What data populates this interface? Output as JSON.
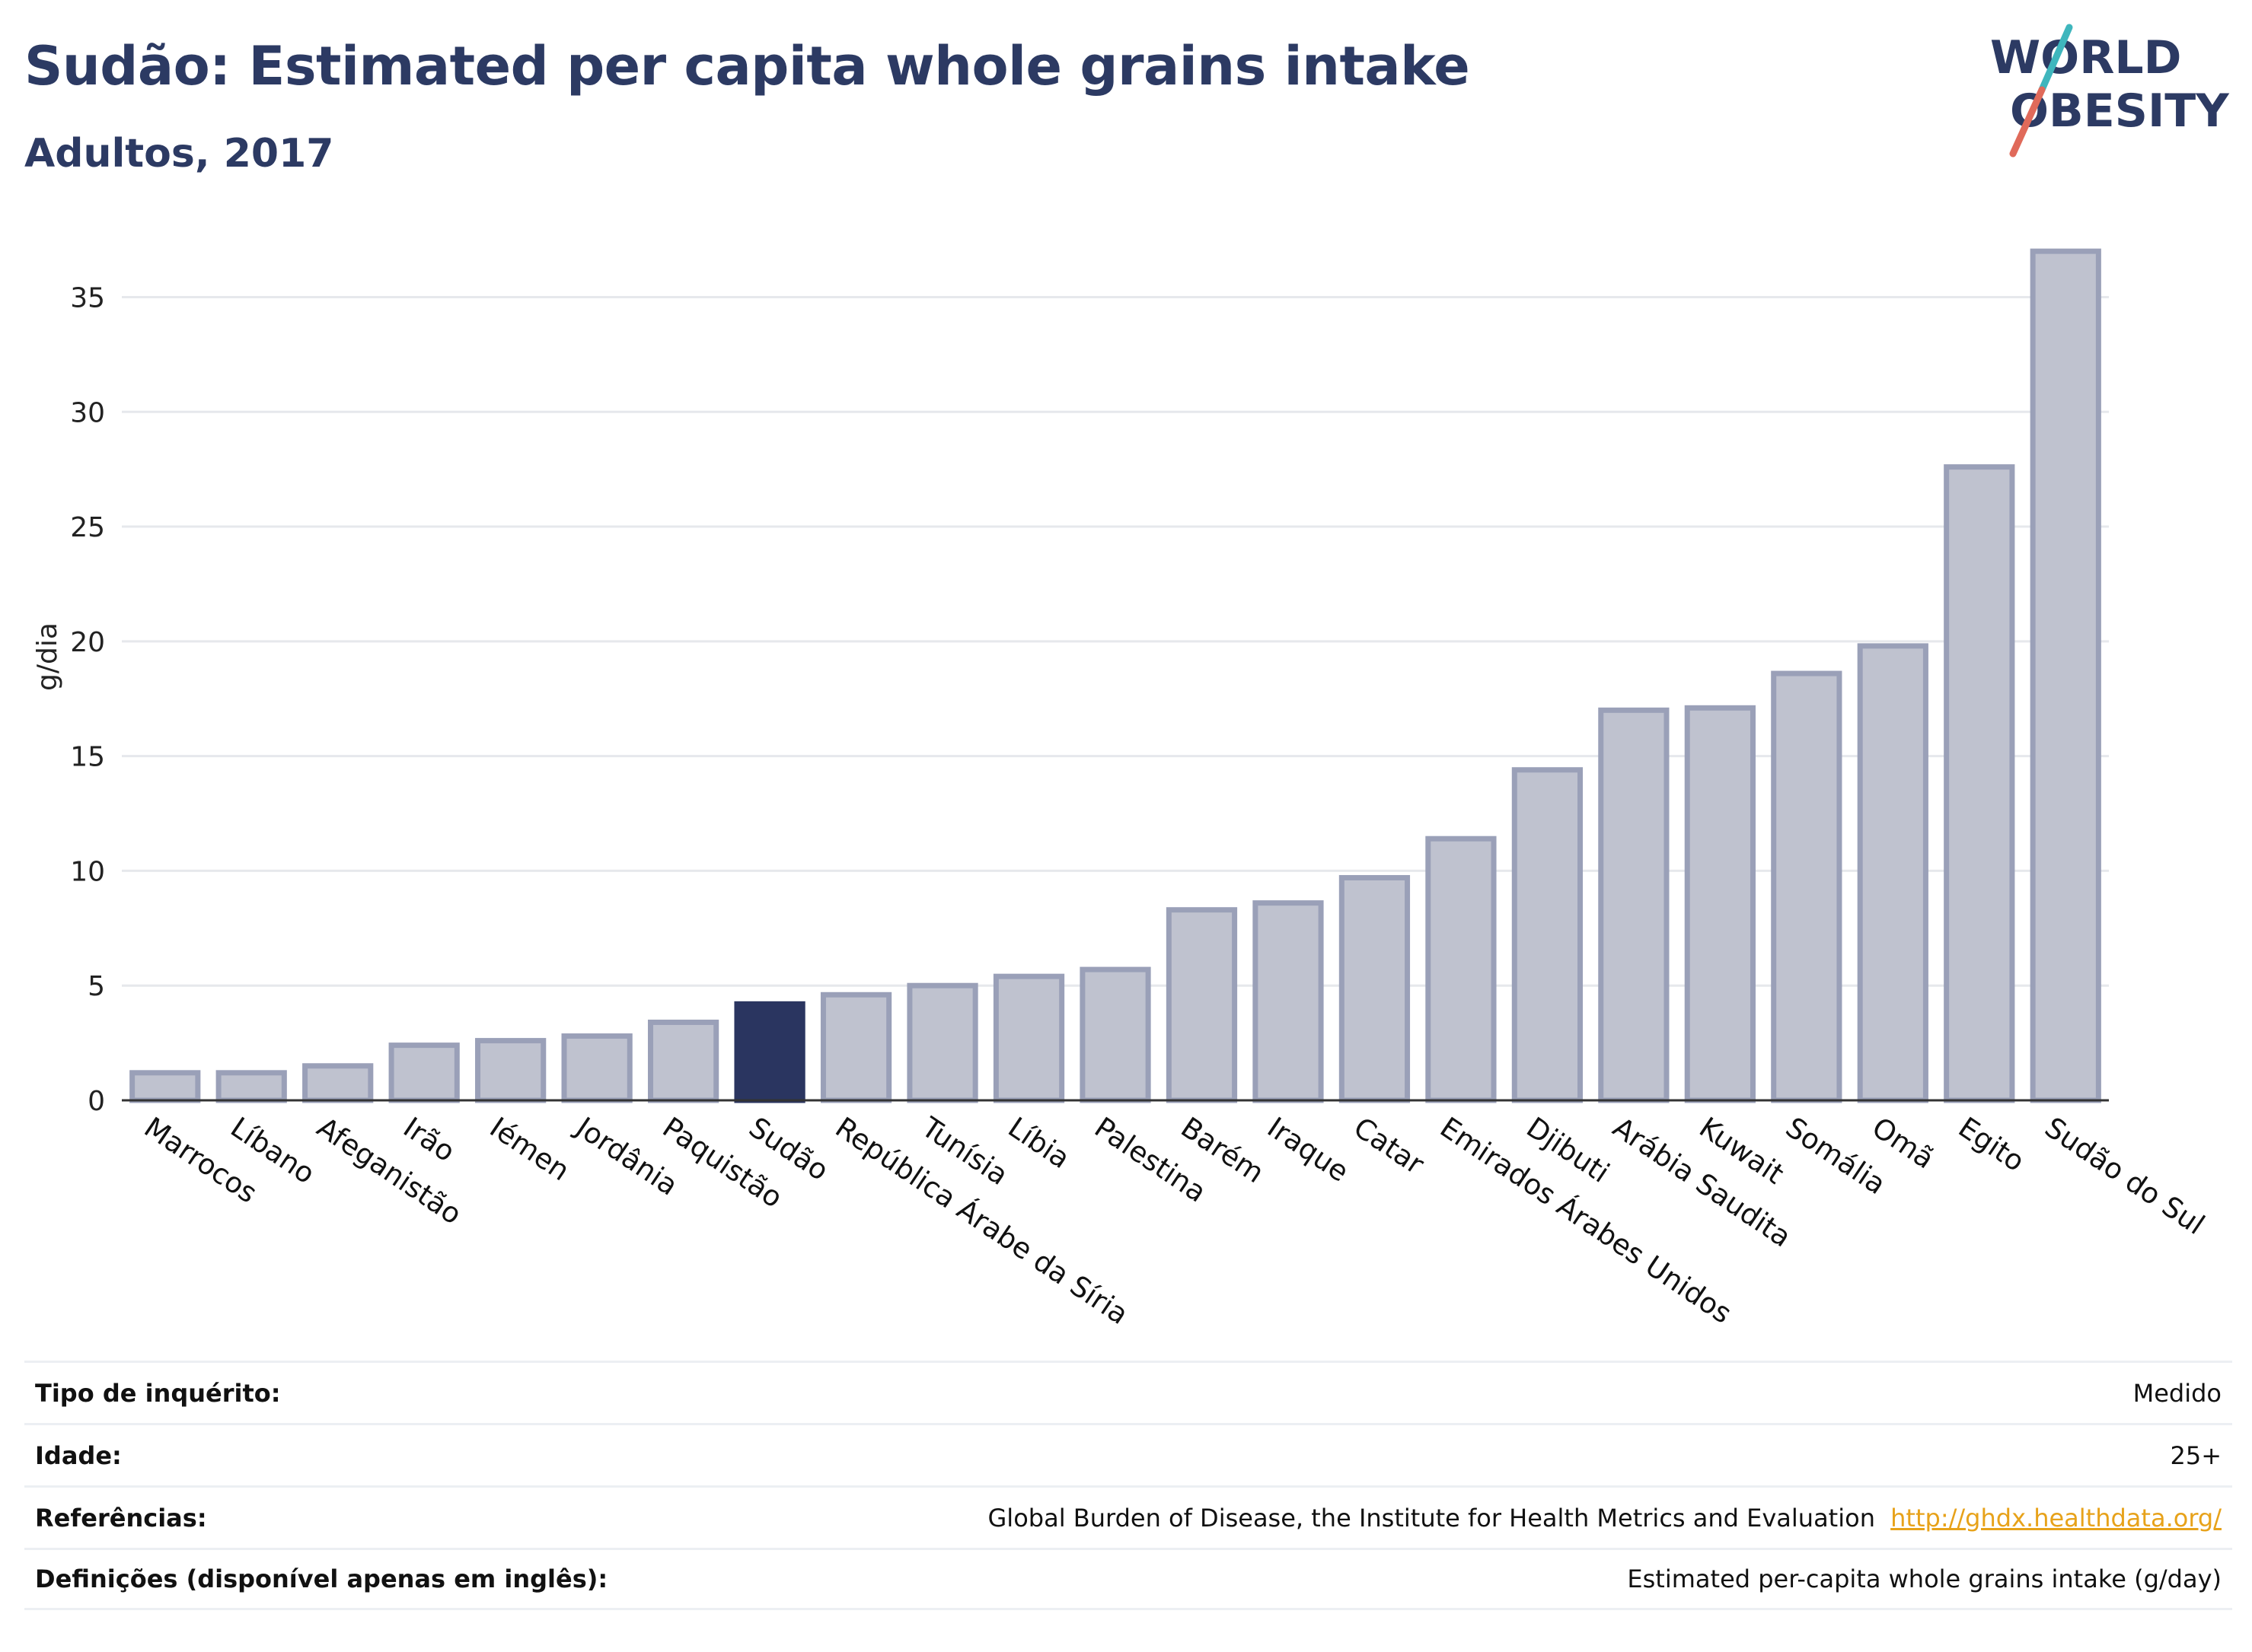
{
  "header": {
    "title": "Sudão: Estimated per capita whole grains intake",
    "subtitle": "Adultos, 2017"
  },
  "logo": {
    "line1": "WORLD",
    "line2": "OBESITY"
  },
  "colors": {
    "title": "#2c3a63",
    "highlight_bar": "#2a3560",
    "bar_fill": "#bfc2cf",
    "bar_stroke": "#9aa0b8",
    "logo_teal": "#3fb6bd",
    "logo_red": "#e06a5a",
    "link": "#e7a21a"
  },
  "chart_data": {
    "type": "bar",
    "ylabel": "g/dia",
    "ylim": [
      0,
      38
    ],
    "yticks": [
      0,
      5,
      10,
      15,
      20,
      25,
      30,
      35
    ],
    "grid": true,
    "highlight": "Sudão",
    "categories": [
      "Marrocos",
      "Líbano",
      "Afeganistão",
      "Irão",
      "Iémen",
      "Jordânia",
      "Paquistão",
      "Sudão",
      "República Árabe da Síria",
      "Tunísia",
      "Líbia",
      "Palestina",
      "Barém",
      "Iraque",
      "Catar",
      "Emirados Árabes Unidos",
      "Djibuti",
      "Arábia Saudita",
      "Kuwait",
      "Somália",
      "Omã",
      "Egito",
      "Sudão do Sul"
    ],
    "values": [
      1.2,
      1.2,
      1.5,
      2.4,
      2.6,
      2.8,
      3.4,
      4.2,
      4.6,
      5.0,
      5.4,
      5.7,
      8.3,
      8.6,
      9.7,
      11.4,
      14.4,
      17.0,
      17.1,
      18.6,
      19.8,
      27.6,
      37.0
    ]
  },
  "meta": {
    "rows": [
      {
        "label": "Tipo de inquérito:",
        "value": "Medido"
      },
      {
        "label": "Idade:",
        "value": "25+"
      },
      {
        "label": "Referências:",
        "value": "Global Burden of Disease, the Institute for Health Metrics and Evaluation",
        "link": "http://ghdx.healthdata.org/"
      },
      {
        "label": "Definições (disponível apenas em inglês):",
        "value": "Estimated per-capita whole grains intake (g/day)"
      }
    ]
  }
}
